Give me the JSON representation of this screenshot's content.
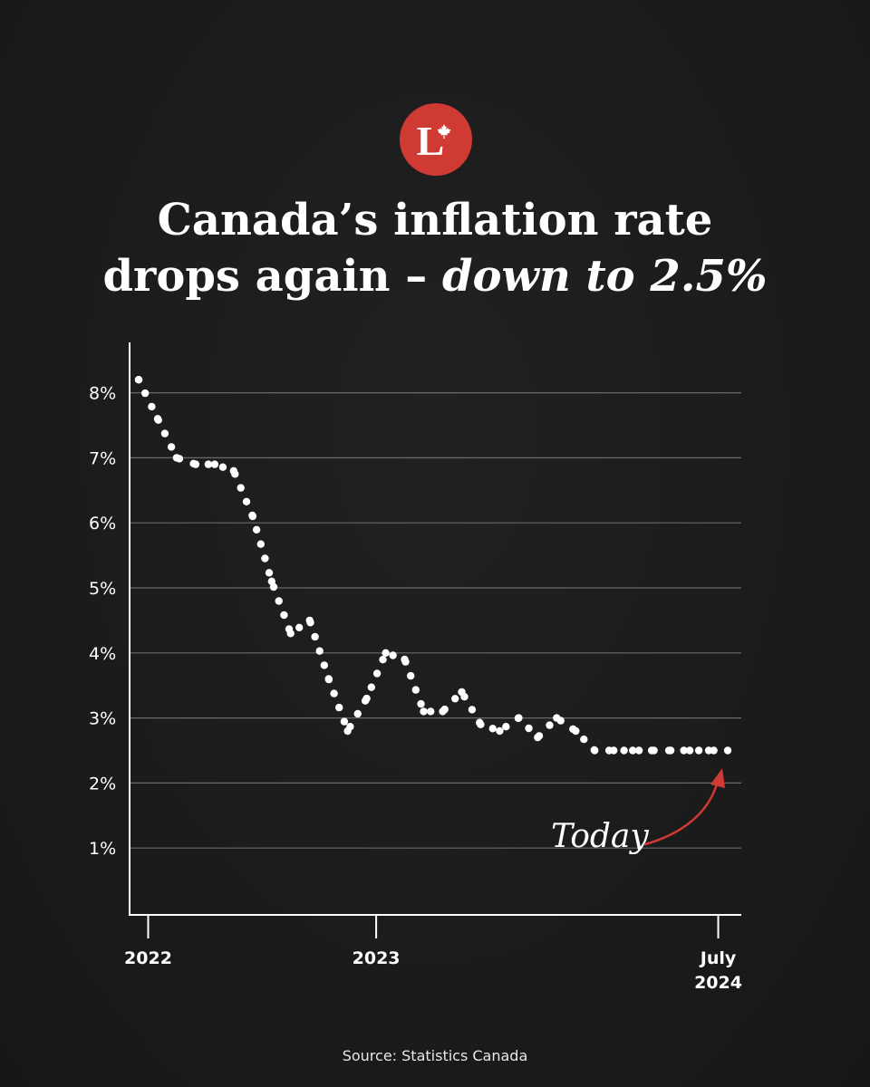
{
  "brand": {
    "logo_letter": "L",
    "logo_icon": "maple-leaf-icon",
    "logo_color": "#cf3a32"
  },
  "title": {
    "line1": "Canada’s inflation rate",
    "line2_plain": "drops again – ",
    "line2_emphasis": "down to 2.5%"
  },
  "chart_data": {
    "type": "line",
    "style": "dotted",
    "title": "Canada’s inflation rate drops again – down to 2.5%",
    "y_ticks": [
      "1%",
      "2%",
      "3%",
      "4%",
      "5%",
      "6%",
      "7%",
      "8%"
    ],
    "ylim": [
      0,
      8.6
    ],
    "x_ticks": [
      {
        "label": "2022",
        "index": 0.5
      },
      {
        "label": "2023",
        "index": 12.5
      },
      {
        "label": "July\n2024",
        "index": 30.5
      }
    ],
    "grid": "horizontal",
    "series": [
      {
        "x": [
          "2021-12",
          "2022-01",
          "2022-02",
          "2022-03",
          "2022-04",
          "2022-05",
          "2022-06",
          "2022-07",
          "2022-08",
          "2022-09",
          "2022-10",
          "2022-11",
          "2022-12",
          "2023-01",
          "2023-02",
          "2023-03",
          "2023-04",
          "2023-05",
          "2023-06",
          "2023-07",
          "2023-08",
          "2023-09",
          "2023-10",
          "2023-11",
          "2023-12",
          "2024-01",
          "2024-02",
          "2024-03",
          "2024-04",
          "2024-05",
          "2024-06",
          "2024-07"
        ],
        "values": [
          8.2,
          7.6,
          7.0,
          6.9,
          6.9,
          6.8,
          6.1,
          5.1,
          4.3,
          4.5,
          3.6,
          2.8,
          3.3,
          4.0,
          3.9,
          3.1,
          3.1,
          3.4,
          2.9,
          2.8,
          3.0,
          2.7,
          3.0,
          2.8,
          2.5,
          2.5,
          2.5,
          2.5,
          2.5,
          2.5,
          2.5,
          2.5
        ]
      }
    ],
    "annotation": {
      "text": "Today",
      "color": "#cf3a32"
    },
    "colors": {
      "line": "#ffffff",
      "grid": "#6a6a6a",
      "axis": "#ffffff",
      "arrow": "#cf3a32"
    }
  },
  "source": "Source: Statistics Canada"
}
